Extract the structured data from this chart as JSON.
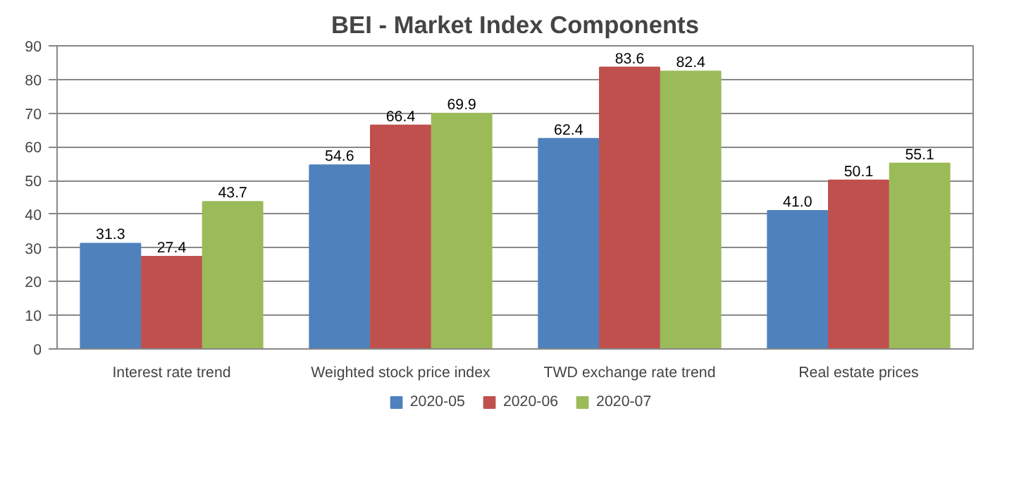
{
  "chart_data": {
    "type": "bar",
    "title": "BEI - Market Index Components",
    "categories": [
      "Interest rate trend",
      "Weighted stock price index",
      "TWD exchange rate trend",
      "Real estate prices"
    ],
    "series": [
      {
        "name": "2020-05",
        "color": "#4f81bd",
        "values": [
          31.3,
          54.6,
          62.4,
          41.0
        ],
        "value_labels": [
          "31.3",
          "54.6",
          "62.4",
          "41.0"
        ]
      },
      {
        "name": "2020-06",
        "color": "#c0504d",
        "values": [
          27.4,
          66.4,
          83.6,
          50.1
        ],
        "value_labels": [
          "27.4",
          "66.4",
          "83.6",
          "50.1"
        ]
      },
      {
        "name": "2020-07",
        "color": "#9bbb59",
        "values": [
          43.7,
          69.9,
          82.4,
          55.1
        ],
        "value_labels": [
          "43.7",
          "69.9",
          "82.4",
          "55.1"
        ]
      }
    ],
    "ylim": [
      0,
      90
    ],
    "yticks": [
      0,
      10,
      20,
      30,
      40,
      50,
      60,
      70,
      80,
      90
    ],
    "grid": "y",
    "legend": "bottom"
  }
}
